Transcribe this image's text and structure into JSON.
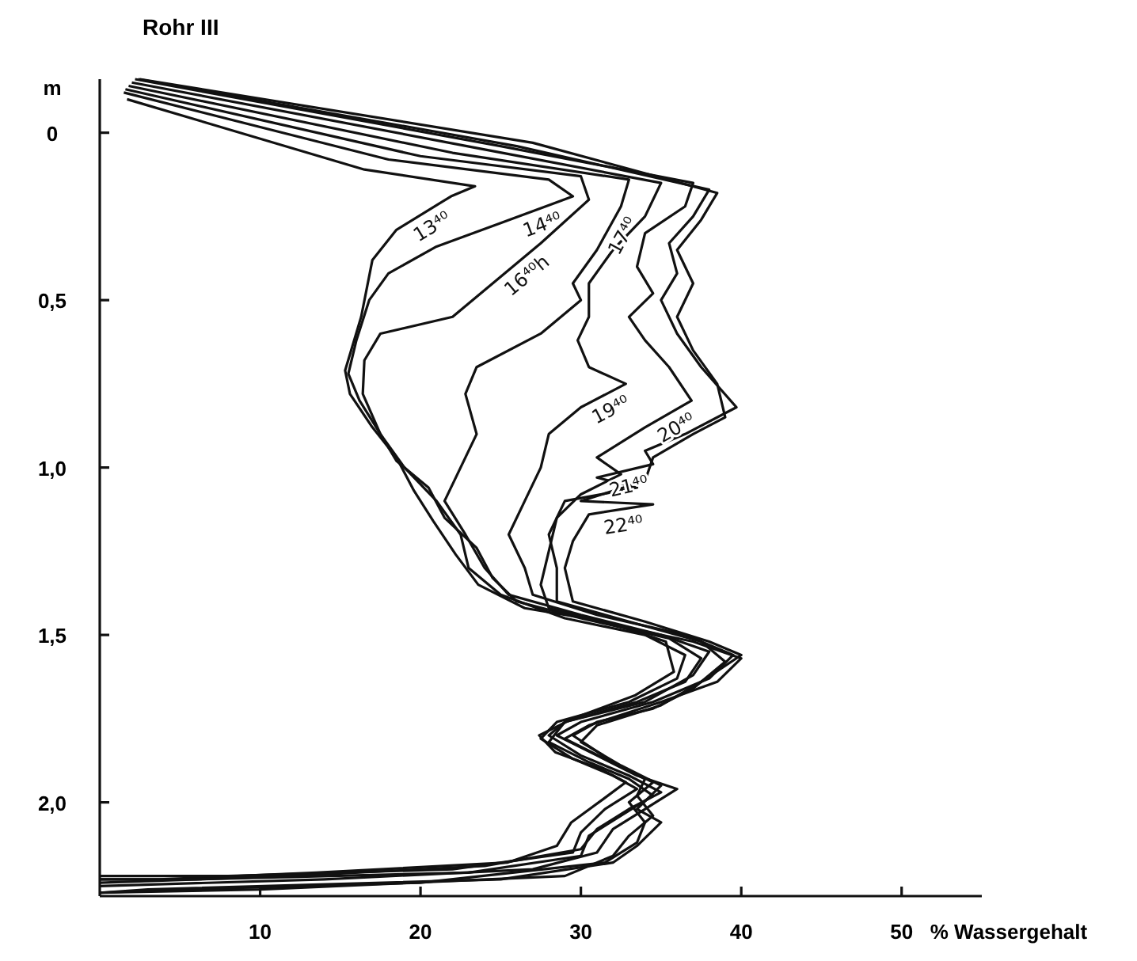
{
  "chart_data": {
    "type": "line",
    "title": "Rohr III",
    "xlabel": "% Wassergehalt",
    "ylabel": "m",
    "xlim": [
      0,
      55
    ],
    "ylim": [
      2.28,
      -0.16
    ],
    "xticks": [
      10,
      20,
      30,
      40,
      50
    ],
    "yticks": [
      0,
      {
        "value": 0.5,
        "label": "0,5"
      },
      {
        "value": 1,
        "label": "1,0"
      },
      {
        "value": 1.5,
        "label": "1,5"
      },
      {
        "value": 2,
        "label": "2,0"
      }
    ],
    "series": [
      {
        "name": "13⁴⁰",
        "color": "#111111",
        "x": [
          1.7,
          16.5,
          23.4,
          21.9,
          18.5,
          17,
          16.3,
          15.3,
          15.6,
          17,
          18.5,
          19.6,
          20.8,
          22.2,
          23.6,
          26.5,
          31.5,
          35.3,
          35.8,
          33.4,
          29.5,
          27.4,
          28.4,
          31.2,
          32.8,
          31.4,
          29.4,
          28.5,
          25.4,
          13.5,
          3.7,
          0
        ],
        "values": [
          -0.1,
          0.11,
          0.16,
          0.19,
          0.29,
          0.38,
          0.55,
          0.71,
          0.78,
          0.88,
          0.97,
          1.07,
          1.16,
          1.26,
          1.35,
          1.42,
          1.46,
          1.52,
          1.61,
          1.68,
          1.75,
          1.8,
          1.85,
          1.9,
          1.94,
          1.99,
          2.06,
          2.13,
          2.18,
          2.21,
          2.23,
          2.23
        ]
      },
      {
        "name": "14⁴⁰",
        "color": "#111111",
        "x": [
          1.5,
          18,
          28,
          29.5,
          25,
          21,
          18,
          16.8,
          16,
          15.5,
          16.2,
          17.5,
          19,
          21,
          22.5,
          23,
          25,
          29,
          34,
          36.5,
          36,
          33,
          28.5,
          27.5,
          29.5,
          32,
          33.5,
          31.5,
          30,
          29.5,
          22,
          8,
          0
        ],
        "values": [
          -0.12,
          0.08,
          0.14,
          0.19,
          0.27,
          0.34,
          0.42,
          0.5,
          0.62,
          0.72,
          0.8,
          0.9,
          1,
          1.1,
          1.2,
          1.3,
          1.38,
          1.45,
          1.5,
          1.56,
          1.63,
          1.7,
          1.76,
          1.81,
          1.87,
          1.92,
          1.96,
          2.02,
          2.09,
          2.15,
          2.2,
          2.22,
          2.22
        ]
      },
      {
        "name": "16⁴⁰h",
        "color": "#111111",
        "x": [
          1.6,
          20,
          30,
          30.5,
          27.5,
          24.5,
          22,
          17.5,
          16.5,
          16.4,
          17.5,
          18.5,
          20.5,
          21.5,
          23.5,
          24.5,
          26,
          30,
          35.5,
          37.5,
          36.5,
          33.5,
          29,
          28,
          30.5,
          33,
          34.5,
          32.5,
          30.5,
          30,
          23,
          6,
          0
        ],
        "values": [
          -0.13,
          0.07,
          0.13,
          0.2,
          0.33,
          0.45,
          0.55,
          0.6,
          0.68,
          0.78,
          0.9,
          0.98,
          1.06,
          1.15,
          1.24,
          1.33,
          1.4,
          1.45,
          1.51,
          1.57,
          1.64,
          1.7,
          1.76,
          1.82,
          1.88,
          1.93,
          1.98,
          2.04,
          2.1,
          2.16,
          2.21,
          2.23,
          2.23
        ]
      },
      {
        "name": "17⁴⁰",
        "color": "#111111",
        "x": [
          1.8,
          22,
          33,
          32.5,
          31,
          29.5,
          30,
          27.5,
          23.5,
          22.8,
          23.5,
          22.5,
          21.5,
          22.8,
          24,
          25.5,
          30,
          35,
          38,
          37,
          34,
          29,
          28,
          30,
          33,
          35,
          33,
          31,
          30,
          24,
          12,
          0
        ],
        "values": [
          -0.14,
          0.06,
          0.14,
          0.22,
          0.35,
          0.45,
          0.5,
          0.6,
          0.7,
          0.78,
          0.9,
          1,
          1.1,
          1.2,
          1.3,
          1.38,
          1.44,
          1.5,
          1.55,
          1.62,
          1.7,
          1.76,
          1.8,
          1.86,
          1.92,
          1.97,
          2.02,
          2.08,
          2.14,
          2.19,
          2.22,
          2.24
        ]
      },
      {
        "name": "19⁴⁰",
        "color": "#111111",
        "x": [
          2,
          24,
          35,
          34,
          32,
          30.5,
          30.5,
          29.8,
          30.5,
          32.8,
          30,
          28,
          27.5,
          26.5,
          25.5,
          26.5,
          27,
          31,
          36.5,
          39.5,
          38,
          34.5,
          30,
          28.5,
          31,
          33.5,
          36,
          34,
          32,
          31,
          27,
          14,
          0
        ],
        "values": [
          -0.15,
          0.05,
          0.15,
          0.25,
          0.35,
          0.45,
          0.55,
          0.62,
          0.7,
          0.75,
          0.82,
          0.9,
          1,
          1.1,
          1.2,
          1.3,
          1.38,
          1.44,
          1.5,
          1.56,
          1.63,
          1.7,
          1.76,
          1.8,
          1.86,
          1.92,
          1.96,
          2.02,
          2.08,
          2.15,
          2.2,
          2.23,
          2.25
        ]
      },
      {
        "name": "20⁴⁰",
        "color": "#111111",
        "x": [
          2.2,
          25,
          37,
          36.5,
          34,
          33.5,
          34.5,
          33,
          34,
          35.5,
          36.9,
          34,
          31,
          32.5,
          30,
          28.5,
          28,
          27.5,
          28,
          32,
          37,
          40,
          38.5,
          35,
          30.5,
          29,
          31.5,
          34,
          33.5,
          34.5,
          33,
          32,
          29,
          10,
          0
        ],
        "values": [
          -0.16,
          0.04,
          0.15,
          0.22,
          0.3,
          0.4,
          0.48,
          0.55,
          0.62,
          0.7,
          0.8,
          0.88,
          0.97,
          1.02,
          1.08,
          1.15,
          1.25,
          1.35,
          1.42,
          1.47,
          1.52,
          1.57,
          1.64,
          1.7,
          1.77,
          1.81,
          1.87,
          1.93,
          1.98,
          2.04,
          2.1,
          2.16,
          2.22,
          2.26,
          2.27
        ]
      },
      {
        "name": "21⁴⁰",
        "color": "#111111",
        "x": [
          2.4,
          26,
          38,
          37,
          35.5,
          36,
          35,
          36,
          37.5,
          39.7,
          36.5,
          34,
          34.5,
          31,
          33.5,
          29,
          28,
          28.5,
          28.5,
          33,
          37.5,
          39,
          37,
          34.5,
          31,
          29.5,
          32,
          34.5,
          33,
          34,
          33.5,
          31.5,
          20,
          5,
          0
        ],
        "values": [
          -0.16,
          0.04,
          0.17,
          0.25,
          0.33,
          0.42,
          0.5,
          0.6,
          0.7,
          0.82,
          0.9,
          0.95,
          0.99,
          1.03,
          1.06,
          1.1,
          1.2,
          1.3,
          1.4,
          1.46,
          1.52,
          1.58,
          1.66,
          1.72,
          1.76,
          1.8,
          1.88,
          1.94,
          2,
          2.06,
          2.12,
          2.18,
          2.24,
          2.26,
          2.27
        ]
      },
      {
        "name": "22⁴⁰",
        "color": "#111111",
        "x": [
          2.5,
          27,
          38.5,
          37.5,
          36,
          37,
          36,
          37,
          38.5,
          39,
          37,
          34.5,
          34,
          30,
          34.5,
          30.5,
          29.5,
          29,
          29.5,
          34,
          38,
          40,
          37.5,
          35,
          31,
          30,
          32.5,
          35,
          33.5,
          35,
          33.5,
          32,
          25,
          3,
          0
        ],
        "values": [
          -0.16,
          0.03,
          0.18,
          0.26,
          0.35,
          0.45,
          0.55,
          0.65,
          0.75,
          0.85,
          0.9,
          0.97,
          1.04,
          1.1,
          1.11,
          1.14,
          1.22,
          1.3,
          1.4,
          1.46,
          1.52,
          1.56,
          1.64,
          1.71,
          1.77,
          1.82,
          1.89,
          1.95,
          2.02,
          2.06,
          2.13,
          2.18,
          2.23,
          2.26,
          2.27
        ]
      }
    ]
  }
}
